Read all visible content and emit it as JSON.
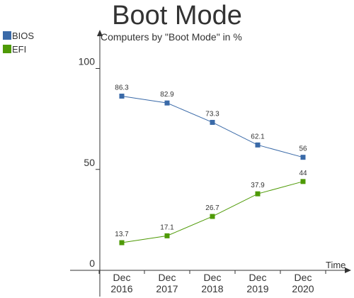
{
  "chart_data": {
    "type": "line",
    "title": "Boot Mode",
    "subtitle": "Computers by \"Boot Mode\" in %",
    "xlabel": "Time",
    "ylabel": "",
    "categories": [
      "Dec 2016",
      "Dec 2017",
      "Dec 2018",
      "Dec 2019",
      "Dec 2020"
    ],
    "series": [
      {
        "name": "BIOS",
        "color": "#3a6aa8",
        "values": [
          86.3,
          82.9,
          73.3,
          62.1,
          56
        ]
      },
      {
        "name": "EFI",
        "color": "#4e9a06",
        "values": [
          13.7,
          17.1,
          26.7,
          37.9,
          44
        ]
      }
    ],
    "ylim": [
      0,
      115
    ],
    "yticks": [
      0,
      50,
      100
    ],
    "grid": false,
    "legend_position": "top-left",
    "data_labels": true
  }
}
